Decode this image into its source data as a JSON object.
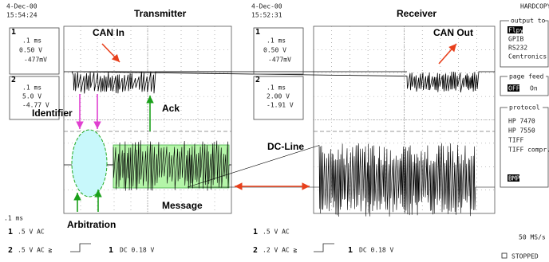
{
  "left": {
    "date": "4-Dec-00",
    "time": "15:54:24",
    "title": "Transmitter",
    "ch1_box": {
      "num": "1",
      "timebase": ".1 ms",
      "scale": "0.50 V",
      "offset": "-477mV"
    },
    "ch2_box": {
      "num": "2",
      "timebase": ".1 ms",
      "scale": "5.0 V",
      "offset": "-4.77 V"
    },
    "timebase": ".1 ms",
    "ch1_setting": {
      "num": "1",
      "text": ".5  V  AC"
    },
    "ch2_setting": {
      "num": "2",
      "text": ".5  V  AC ≧"
    },
    "trigger": {
      "num": "1",
      "text": "DC 0.18 V"
    }
  },
  "right": {
    "date": "4-Dec-00",
    "time": "15:52:31",
    "title": "Receiver",
    "ch1_box": {
      "num": "1",
      "timebase": ".1 ms",
      "scale": "0.50 V",
      "offset": "-477mV"
    },
    "ch2_box": {
      "num": "2",
      "timebase": ".1 ms",
      "scale": "2.00 V",
      "offset": "-1.91 V"
    },
    "ch1_setting": {
      "num": "1",
      "text": ".5  V  AC"
    },
    "ch2_setting": {
      "num": "2",
      "text": ".2  V  AC ≧"
    },
    "trigger": {
      "num": "1",
      "text": "DC 0.18 V"
    }
  },
  "annotations": {
    "can_in": "CAN In",
    "identifier": "Identifier",
    "ack": "Ack",
    "arbitration": "Arbitration",
    "message": "Message",
    "dc_line": "DC-Line",
    "can_out": "CAN Out"
  },
  "menu": {
    "title": "HARDCOPY",
    "output_label": "output to",
    "output": [
      "Flpy",
      "GPIB",
      "RS232",
      "Centronics"
    ],
    "page_feed_label": "page feed",
    "page_feed": [
      "OFF",
      "On"
    ],
    "protocol_label": "protocol",
    "protocol": [
      "HP 7470",
      "HP 7550",
      "TIFF",
      "TIFF compr.",
      "BMP"
    ]
  },
  "status": {
    "rate": "50 MS/s",
    "state": "STOPPED"
  }
}
